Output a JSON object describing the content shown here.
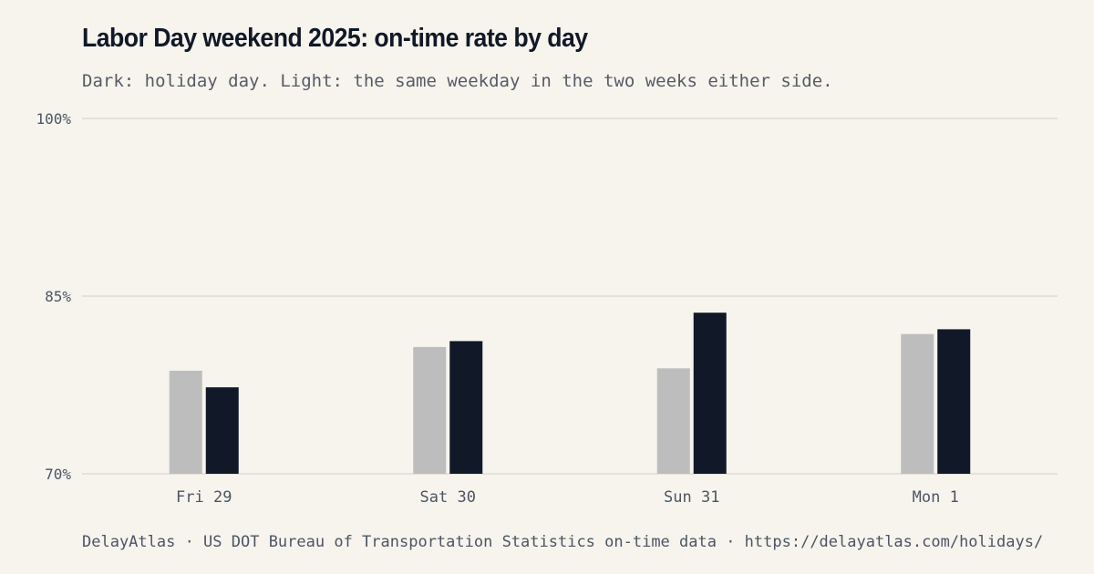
{
  "title": "Labor Day weekend 2025: on-time rate by day",
  "subtitle": "Dark: holiday day. Light: the same weekday in the two weeks either side.",
  "footer": "DelayAtlas · US DOT Bureau of Transportation Statistics on-time data · https://delayatlas.com/holidays/",
  "colors": {
    "background": "#f7f4ee",
    "gridline": "#e4e1da",
    "baseline_bar": "#bdbdbd",
    "holiday_bar": "#111827",
    "tick_text": "#4b5563"
  },
  "chart_data": {
    "type": "bar",
    "categories": [
      "Fri 29",
      "Sat 30",
      "Sun 31",
      "Mon 1"
    ],
    "series": [
      {
        "values": [
          78.7,
          80.7,
          78.9,
          81.8
        ]
      },
      {
        "values": [
          77.3,
          81.2,
          83.6,
          82.2
        ]
      }
    ],
    "ylim": [
      70,
      100
    ],
    "yticks": [
      70,
      85,
      100
    ],
    "ytick_labels": [
      "70%",
      "85%",
      "100%"
    ],
    "grid": true
  }
}
